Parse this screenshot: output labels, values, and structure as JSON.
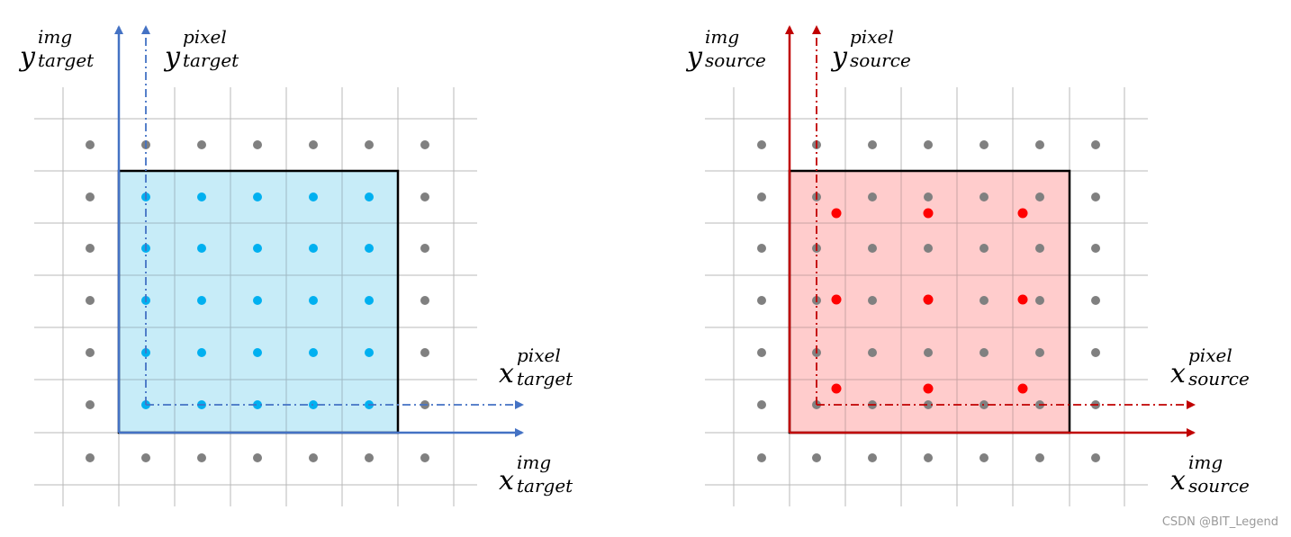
{
  "panels": [
    {
      "id": "target",
      "region_fill": "#c7ecf8",
      "axis_color": "#4472c4",
      "inner_dot_color": "#00b0f0",
      "grid_dot_color": "#808080",
      "labels": {
        "y_img": {
          "main": "y",
          "sup": "img",
          "sub": "target"
        },
        "y_pixel": {
          "main": "y",
          "sup": "pixel",
          "sub": "target"
        },
        "x_pixel": {
          "main": "x",
          "sup": "pixel",
          "sub": "target"
        },
        "x_img": {
          "main": "x",
          "sup": "img",
          "sub": "target"
        }
      }
    },
    {
      "id": "source",
      "region_fill": "#ffcccc",
      "axis_color": "#c00000",
      "inner_dot_color": "#808080",
      "sample_dot_color": "#ff0000",
      "grid_dot_color": "#808080",
      "labels": {
        "y_img": {
          "main": "y",
          "sup": "img",
          "sub": "source"
        },
        "y_pixel": {
          "main": "y",
          "sup": "pixel",
          "sub": "source"
        },
        "x_pixel": {
          "main": "x",
          "sup": "pixel",
          "sub": "source"
        },
        "x_img": {
          "main": "x",
          "sup": "img",
          "sub": "source"
        }
      }
    }
  ],
  "watermark": "CSDN @BIT_Legend"
}
